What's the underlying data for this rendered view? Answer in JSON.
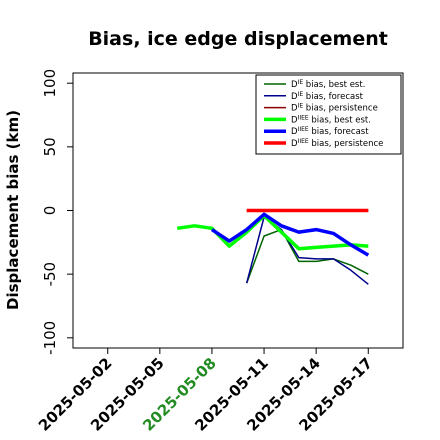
{
  "chart_data": {
    "type": "line",
    "title": "Bias, ice edge displacement",
    "xlabel": "",
    "ylabel": "Displacement bias (km)",
    "ylim": [
      -108,
      108
    ],
    "yticks": [
      -100,
      -50,
      0,
      50,
      100
    ],
    "xlim": [
      "2025-04-30",
      "2025-05-19"
    ],
    "xticks": [
      {
        "date": "2025-05-02",
        "label": "2025-05-02",
        "color": "#000000"
      },
      {
        "date": "2025-05-05",
        "label": "2025-05-05",
        "color": "#000000"
      },
      {
        "date": "2025-05-08",
        "label": "2025-05-08",
        "color": "#228B22"
      },
      {
        "date": "2025-05-11",
        "label": "2025-05-11",
        "color": "#000000"
      },
      {
        "date": "2025-05-14",
        "label": "2025-05-14",
        "color": "#000000"
      },
      {
        "date": "2025-05-17",
        "label": "2025-05-17",
        "color": "#000000"
      }
    ],
    "grid": false,
    "legend_position": "top-right",
    "series": [
      {
        "name": "D^IE bias, best est.",
        "legend_base": "D",
        "legend_sup": "IE",
        "legend_rest": " bias, best est.",
        "color": "#006400",
        "width": 1.5,
        "points": [
          [
            "2025-05-10",
            -57
          ],
          [
            "2025-05-11",
            -20
          ],
          [
            "2025-05-12",
            -15
          ],
          [
            "2025-05-13",
            -40
          ],
          [
            "2025-05-14",
            -40
          ],
          [
            "2025-05-15",
            -38
          ],
          [
            "2025-05-16",
            -43
          ],
          [
            "2025-05-17",
            -50
          ]
        ]
      },
      {
        "name": "D^IE bias, forecast",
        "legend_base": "D",
        "legend_sup": "IE",
        "legend_rest": " bias, forecast",
        "color": "#00008B",
        "width": 1.5,
        "points": [
          [
            "2025-05-10",
            -57
          ],
          [
            "2025-05-11",
            -5
          ],
          [
            "2025-05-12",
            -15
          ],
          [
            "2025-05-13",
            -37
          ],
          [
            "2025-05-14",
            -38
          ],
          [
            "2025-05-15",
            -38
          ],
          [
            "2025-05-16",
            -47
          ],
          [
            "2025-05-17",
            -58
          ]
        ]
      },
      {
        "name": "D^IE bias, persistence",
        "legend_base": "D",
        "legend_sup": "IE",
        "legend_rest": " bias, persistence",
        "color": "#8B0000",
        "width": 1.5,
        "points": [
          [
            "2025-05-10",
            0
          ],
          [
            "2025-05-17",
            0
          ]
        ]
      },
      {
        "name": "D^IIEE bias, best est.",
        "legend_base": "D",
        "legend_sup": "IIEE",
        "legend_rest": " bias, best est.",
        "color": "#00FF00",
        "width": 3.5,
        "points": [
          [
            "2025-05-06",
            -14
          ],
          [
            "2025-05-07",
            -12
          ],
          [
            "2025-05-08",
            -14
          ],
          [
            "2025-05-09",
            -28
          ],
          [
            "2025-05-10",
            -17
          ],
          [
            "2025-05-11",
            -4
          ],
          [
            "2025-05-12",
            -17
          ],
          [
            "2025-05-13",
            -30
          ],
          [
            "2025-05-14",
            -29
          ],
          [
            "2025-05-15",
            -28
          ],
          [
            "2025-05-16",
            -27
          ],
          [
            "2025-05-17",
            -28
          ]
        ]
      },
      {
        "name": "D^IIEE bias, forecast",
        "legend_base": "D",
        "legend_sup": "IIEE",
        "legend_rest": " bias, forecast",
        "color": "#0000FF",
        "width": 3.5,
        "points": [
          [
            "2025-05-08",
            -15
          ],
          [
            "2025-05-09",
            -24
          ],
          [
            "2025-05-10",
            -15
          ],
          [
            "2025-05-11",
            -3
          ],
          [
            "2025-05-12",
            -12
          ],
          [
            "2025-05-13",
            -17
          ],
          [
            "2025-05-14",
            -15
          ],
          [
            "2025-05-15",
            -18
          ],
          [
            "2025-05-16",
            -27
          ],
          [
            "2025-05-17",
            -35
          ]
        ]
      },
      {
        "name": "D^IIEE bias, persistence",
        "legend_base": "D",
        "legend_sup": "IIEE",
        "legend_rest": " bias, persistence",
        "color": "#FF0000",
        "width": 3.5,
        "points": [
          [
            "2025-05-10",
            0
          ],
          [
            "2025-05-17",
            0
          ]
        ]
      }
    ]
  }
}
